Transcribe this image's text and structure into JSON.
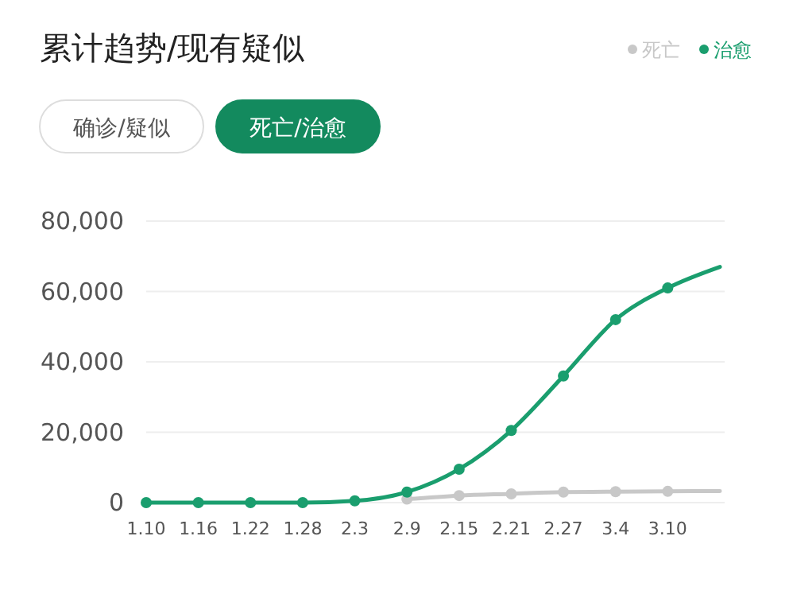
{
  "chart_data": {
    "type": "line",
    "title": "累计趋势/现有疑似",
    "annotations": [
      "确诊/疑似",
      "死亡/治愈"
    ],
    "categories": [
      "1.10",
      "1.16",
      "1.22",
      "1.28",
      "2.3",
      "2.9",
      "2.15",
      "2.21",
      "2.27",
      "3.4",
      "3.10",
      null
    ],
    "series": [
      {
        "name": "死亡",
        "color": "#c8c8c8",
        "values": [
          null,
          null,
          null,
          null,
          null,
          1000,
          2000,
          2500,
          3000,
          3100,
          3200,
          3300
        ]
      },
      {
        "name": "治愈",
        "color": "#1a9e6e",
        "values": [
          0,
          0,
          0,
          0,
          500,
          3000,
          9500,
          20500,
          36000,
          52000,
          61000,
          67000
        ]
      }
    ],
    "ylim": [
      0,
      80000
    ],
    "yticks": [
      {
        "value": 0,
        "label": "0"
      },
      {
        "value": 20000,
        "label": "20,000"
      },
      {
        "value": 40000,
        "label": "40,000"
      },
      {
        "value": 60000,
        "label": "60,000"
      },
      {
        "value": 80000,
        "label": "80,000"
      }
    ],
    "grid": "y",
    "legend": "top right",
    "marker": "circle",
    "line_style": "solid"
  }
}
